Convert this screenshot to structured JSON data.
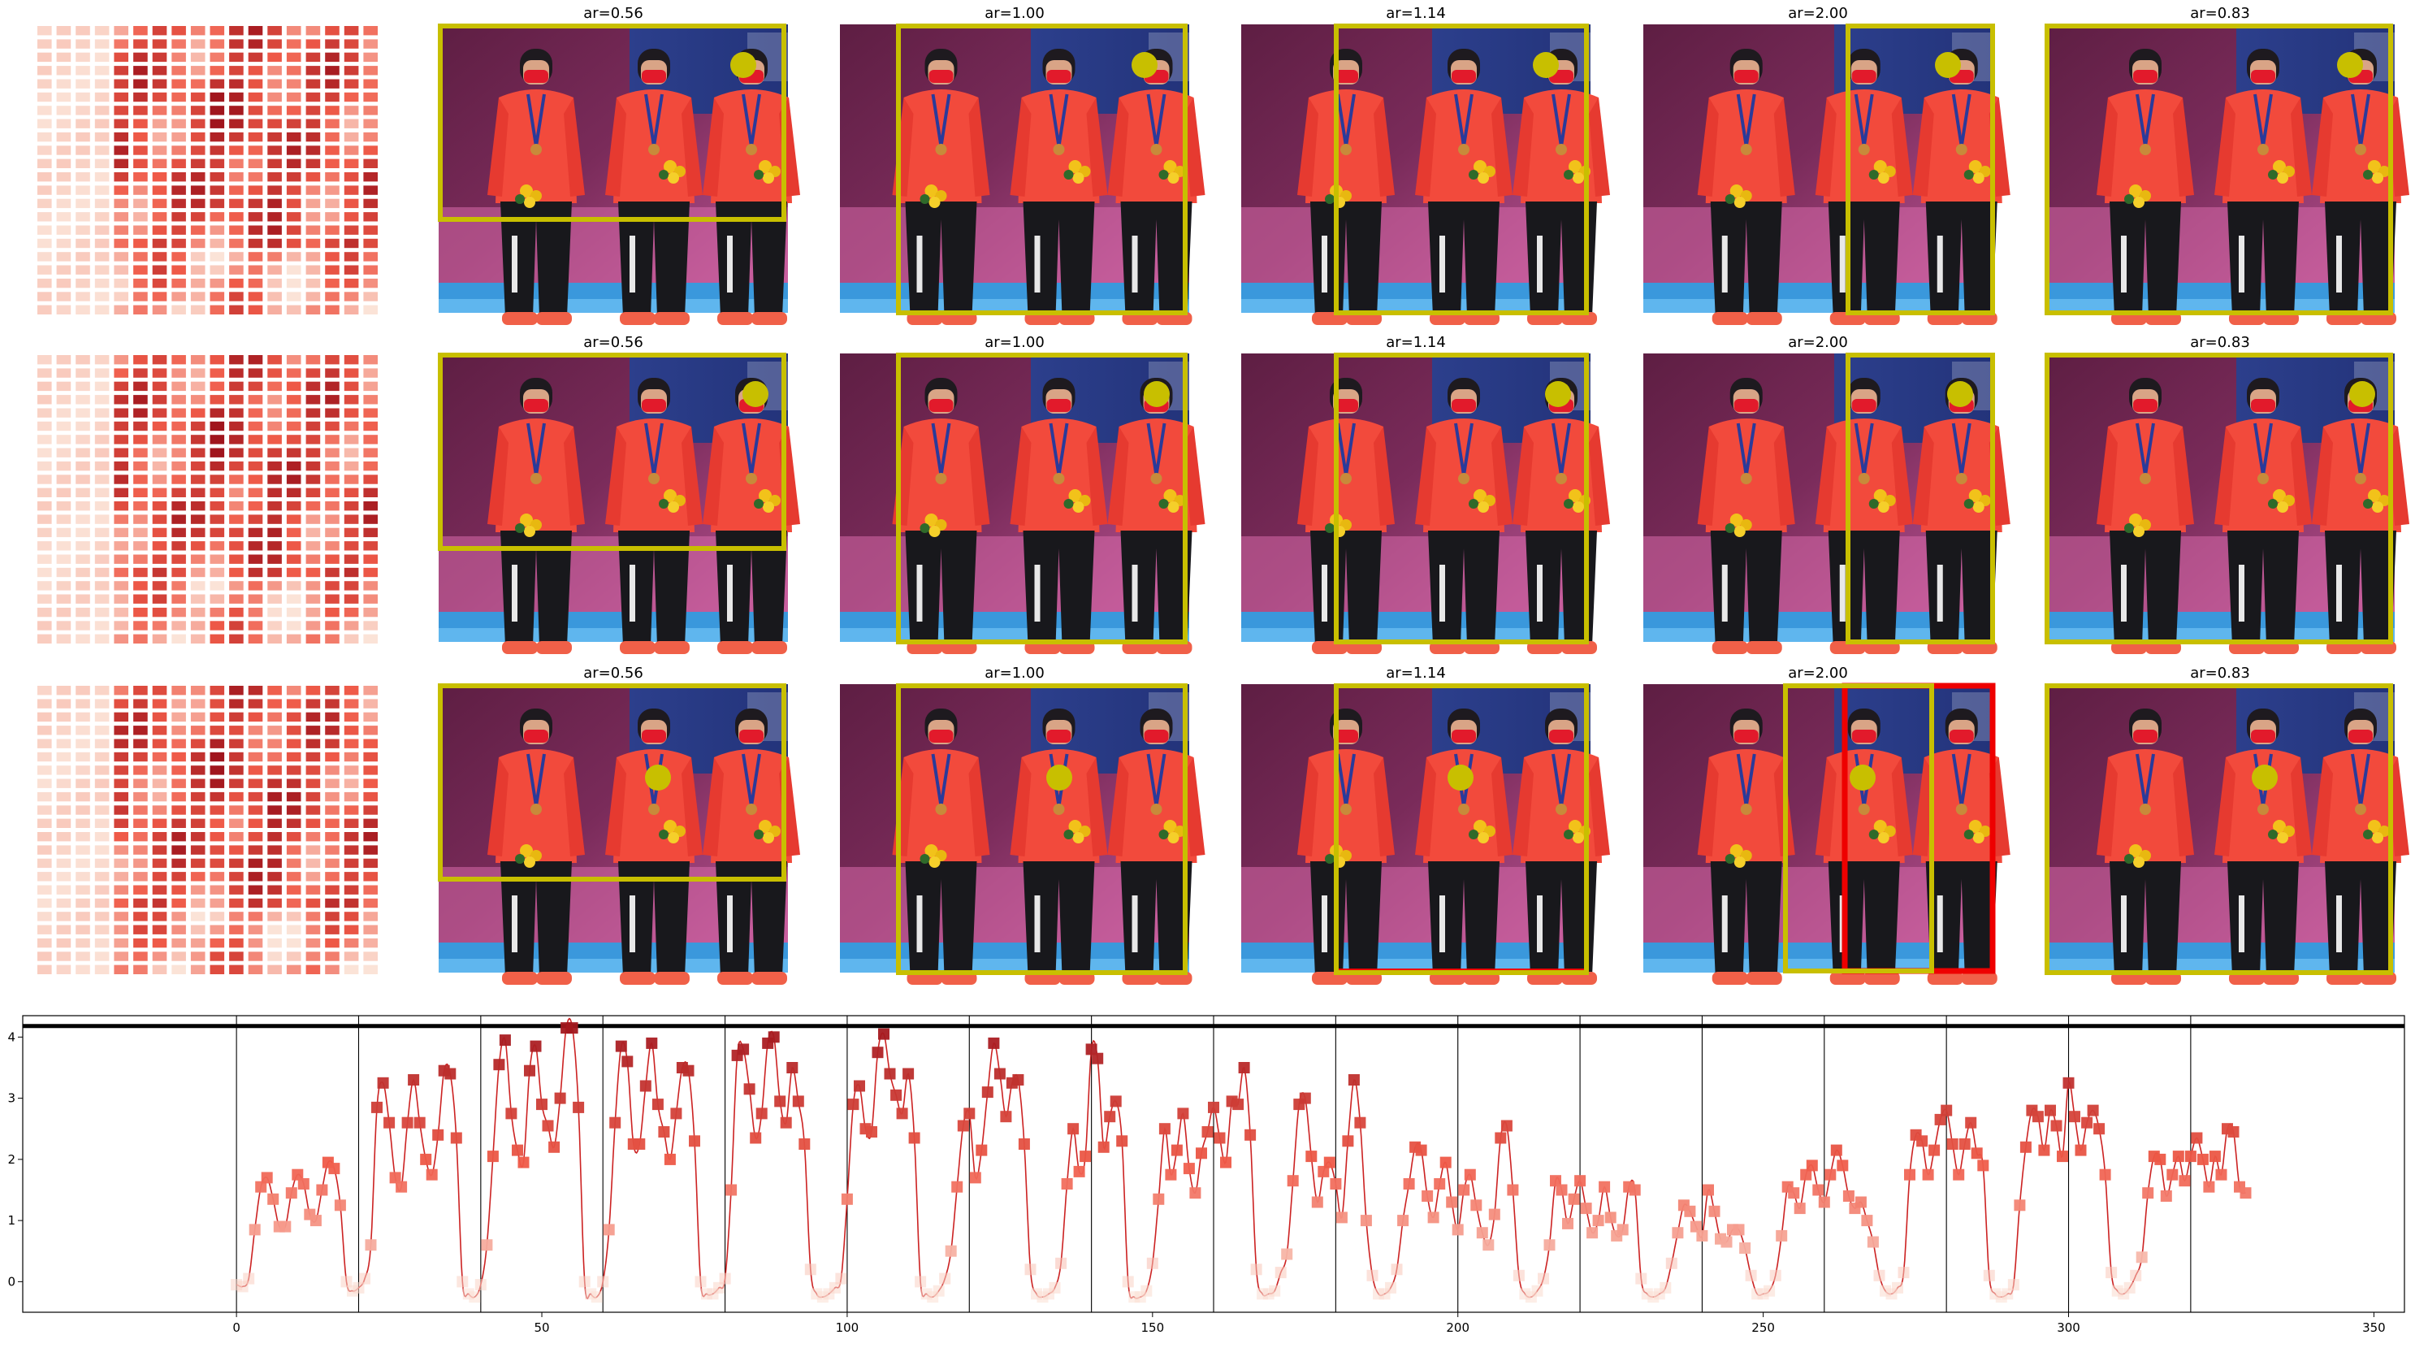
{
  "colors": {
    "box_outline": "#c8bf00",
    "box_highlight": "#ee0000",
    "dot": "#c8bf00",
    "line": "#cc2222",
    "threshold": "#000000",
    "heat_low": "#fbe3d7",
    "heat_high": "#a0151d"
  },
  "panel_titles": [
    "ar=0.56",
    "ar=1.00",
    "ar=1.14",
    "ar=2.00",
    "ar=0.83"
  ],
  "photo_content": "Three athletes in red jackets and black track pants with medals and bouquets on a podium",
  "chart_data": {
    "type": "line",
    "title": "",
    "xlabel": "",
    "ylabel": "",
    "xlim": [
      -35,
      355
    ],
    "ylim": [
      -0.5,
      4.35
    ],
    "xticks": [
      0,
      50,
      100,
      150,
      200,
      250,
      300,
      350
    ],
    "yticks": [
      0,
      1,
      2,
      3,
      4
    ],
    "threshold": 4.18,
    "segment_length": 20,
    "segment_boundaries": [
      0,
      20,
      40,
      60,
      80,
      100,
      120,
      140,
      160,
      180,
      200,
      220,
      240,
      260,
      280,
      300,
      320
    ],
    "markers": "squares colored by value on a light-to-dark red scale",
    "series": [
      {
        "values": [
          -0.05,
          -0.08,
          0.05,
          0.85,
          1.55,
          1.7,
          1.35,
          0.9,
          0.9,
          1.45,
          1.75,
          1.6,
          1.1,
          1.0,
          1.5,
          1.95,
          1.85,
          1.25,
          0.0,
          -0.15,
          -0.1,
          0.05,
          0.6,
          2.85,
          3.25,
          2.6,
          1.7,
          1.55,
          2.6,
          3.3,
          2.6,
          2.0,
          1.75,
          2.4,
          3.45,
          3.4,
          2.35,
          0.0,
          -0.2,
          -0.25,
          -0.05,
          0.6,
          2.05,
          3.55,
          3.95,
          2.75,
          2.15,
          1.95,
          3.45,
          3.85,
          2.9,
          2.55,
          2.2,
          3.0,
          4.15,
          4.15,
          2.85,
          0.0,
          -0.2,
          -0.25,
          0.0,
          0.85,
          2.6,
          3.85,
          3.6,
          2.25,
          2.25,
          3.2,
          3.9,
          2.9,
          2.45,
          2.0,
          2.75,
          3.5,
          3.45,
          2.3,
          0.0,
          -0.2,
          -0.2,
          -0.1,
          0.05,
          1.5,
          3.7,
          3.8,
          3.15,
          2.35,
          2.75,
          3.9,
          4.0,
          2.95,
          2.6,
          3.5,
          2.95,
          2.25,
          0.2,
          -0.2,
          -0.25,
          -0.2,
          -0.1,
          0.05,
          1.35,
          2.9,
          3.2,
          2.5,
          2.45,
          3.75,
          4.05,
          3.4,
          3.05,
          2.75,
          3.4,
          2.35,
          0.0,
          -0.2,
          -0.25,
          -0.15,
          0.05,
          0.5,
          1.55,
          2.55,
          2.75,
          1.7,
          2.15,
          3.1,
          3.9,
          3.4,
          2.7,
          3.25,
          3.3,
          2.25,
          0.2,
          -0.2,
          -0.25,
          -0.2,
          -0.1,
          0.3,
          1.6,
          2.5,
          1.8,
          2.05,
          3.8,
          3.65,
          2.2,
          2.7,
          2.95,
          2.3,
          0.0,
          -0.25,
          -0.25,
          -0.15,
          0.3,
          1.35,
          2.5,
          1.75,
          2.15,
          2.75,
          1.85,
          1.45,
          2.1,
          2.45,
          2.85,
          2.35,
          1.95,
          2.95,
          2.9,
          3.5,
          2.4,
          0.2,
          -0.2,
          -0.2,
          -0.15,
          0.15,
          0.45,
          1.65,
          2.9,
          3.0,
          2.05,
          1.3,
          1.8,
          1.95,
          1.6,
          1.05,
          2.3,
          3.3,
          2.6,
          1.0,
          0.1,
          -0.2,
          -0.2,
          -0.1,
          0.2,
          1.0,
          1.6,
          2.2,
          2.15,
          1.4,
          1.05,
          1.6,
          1.95,
          1.3,
          0.85,
          1.5,
          1.75,
          1.25,
          0.8,
          0.6,
          1.1,
          2.35,
          2.55,
          1.5,
          0.1,
          -0.2,
          -0.25,
          -0.15,
          0.05,
          0.6,
          1.65,
          1.5,
          0.95,
          1.35,
          1.65,
          1.2,
          0.8,
          1.0,
          1.55,
          1.05,
          0.75,
          0.85,
          1.55,
          1.5,
          0.05,
          -0.2,
          -0.25,
          -0.2,
          -0.1,
          0.3,
          0.8,
          1.25,
          1.15,
          0.9,
          0.75,
          1.5,
          1.15,
          0.7,
          0.65,
          0.85,
          0.85,
          0.55,
          0.1,
          -0.2,
          -0.2,
          -0.15,
          0.1,
          0.75,
          1.55,
          1.45,
          1.2,
          1.75,
          1.9,
          1.5,
          1.3,
          1.75,
          2.15,
          1.9,
          1.4,
          1.2,
          1.3,
          1.0,
          0.65,
          0.1,
          -0.15,
          -0.2,
          -0.1,
          0.15,
          1.75,
          2.4,
          2.3,
          1.75,
          2.15,
          2.65,
          2.8,
          2.25,
          1.75,
          2.25,
          2.6,
          2.1,
          1.9,
          0.1,
          -0.2,
          -0.25,
          -0.2,
          -0.05,
          1.25,
          2.2,
          2.8,
          2.7,
          2.15,
          2.8,
          2.55,
          2.05,
          3.25,
          2.7,
          2.15,
          2.6,
          2.8,
          2.5,
          1.75,
          0.15,
          -0.15,
          -0.2,
          -0.1,
          0.1,
          0.4,
          1.45,
          2.05,
          2.0,
          1.4,
          1.75,
          2.05,
          1.65,
          2.05,
          2.35,
          2.0,
          1.55,
          2.05,
          1.75,
          2.5,
          2.45,
          1.55,
          1.45
        ]
      }
    ]
  }
}
